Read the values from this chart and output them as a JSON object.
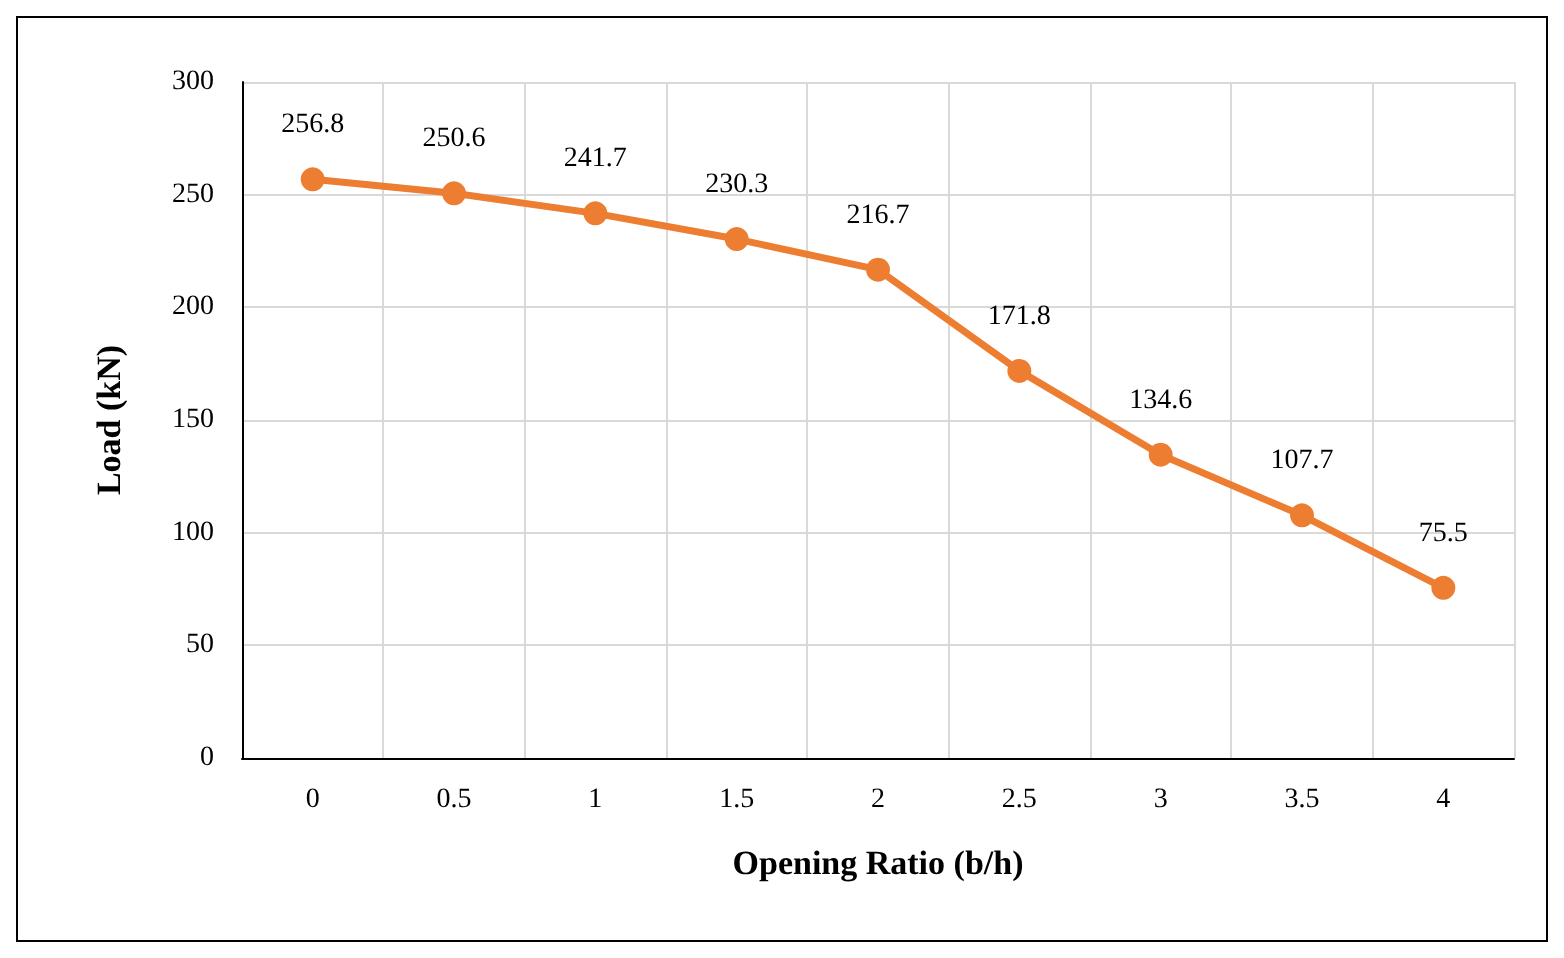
{
  "chart_data": {
    "type": "line",
    "xlabel": "Opening Ratio (b/h)",
    "ylabel": "Load (kN)",
    "categories": [
      "0",
      "0.5",
      "1",
      "1.5",
      "2",
      "2.5",
      "3",
      "3.5",
      "4"
    ],
    "series": [
      {
        "color": "#ed7d31",
        "values": [
          256.8,
          250.6,
          241.7,
          230.3,
          216.7,
          171.8,
          134.6,
          107.7,
          75.5
        ]
      }
    ],
    "ylim": [
      0,
      300
    ],
    "yticks": [
      0,
      50,
      100,
      150,
      200,
      250,
      300
    ],
    "grid": true,
    "marker": "circle",
    "line_style": "solid",
    "data_labels": true
  }
}
